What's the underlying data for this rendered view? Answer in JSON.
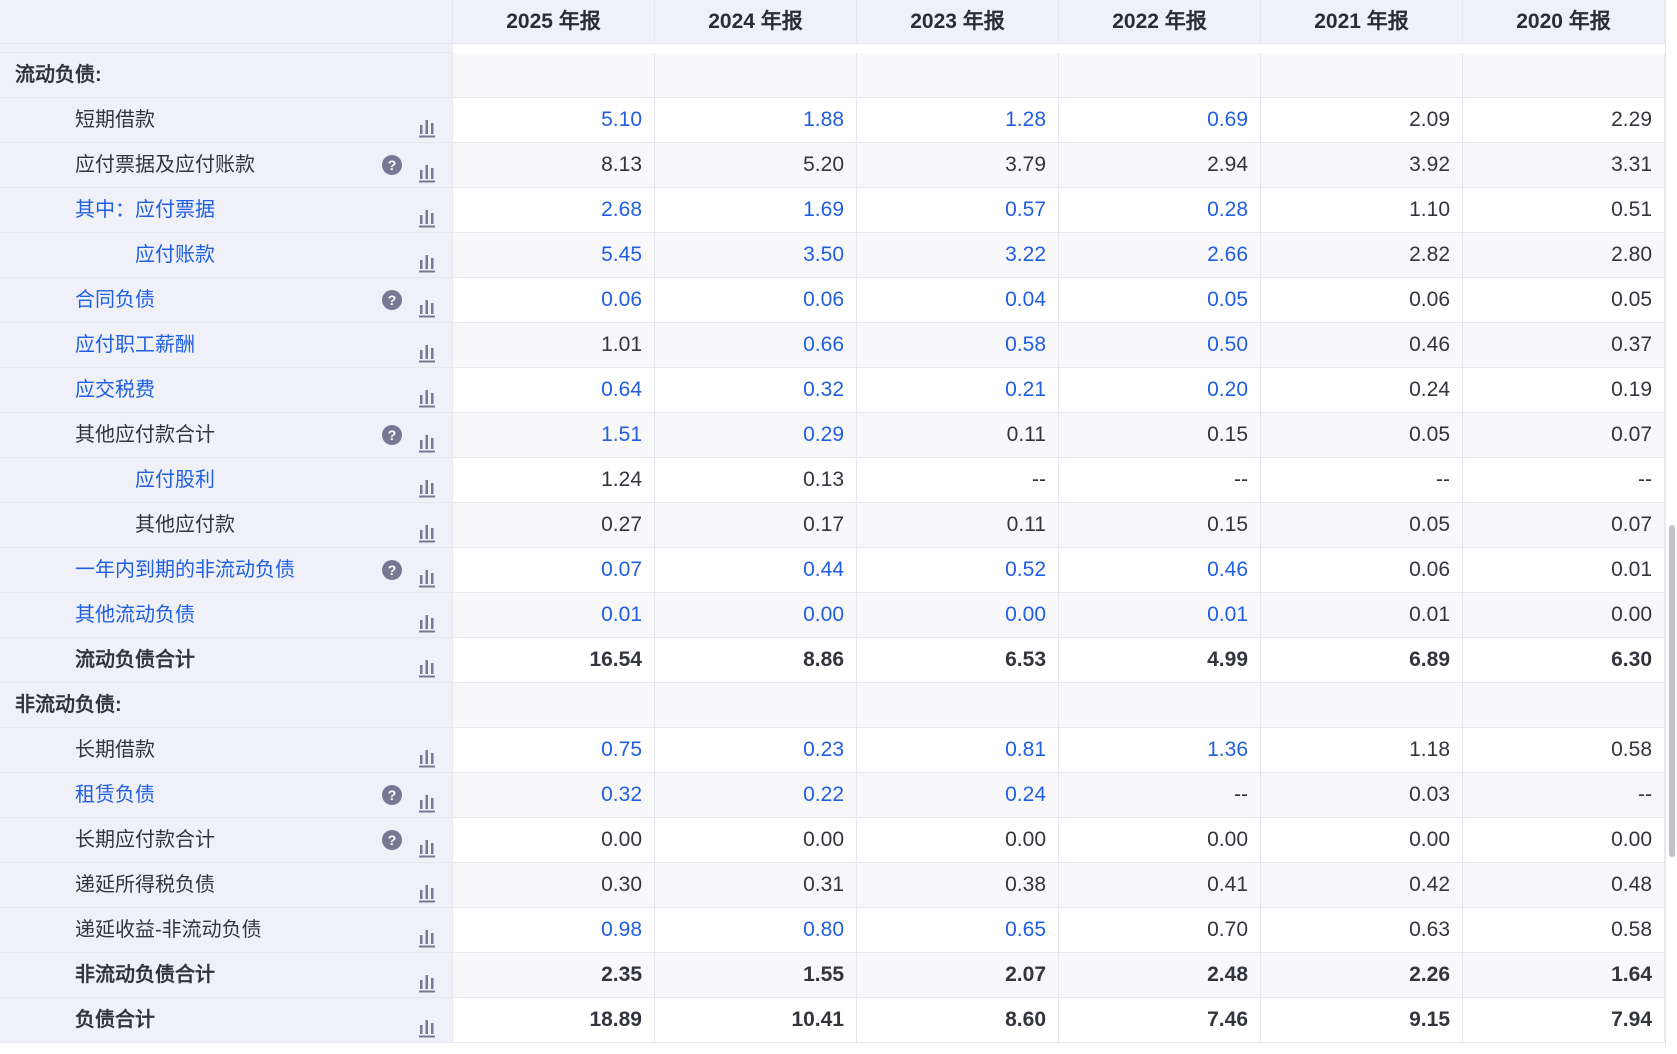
{
  "header": {
    "years": [
      "2025 年报",
      "2024 年报",
      "2023 年报",
      "2022 年报",
      "2021 年报",
      "2020 年报"
    ]
  },
  "colors": {
    "link_blue": "#1f5fe0",
    "text": "#33353d",
    "label_bg": "#f0f1f8"
  },
  "help_glyph": "?",
  "rows": [
    {
      "type": "section",
      "label": "流动负债:"
    },
    {
      "label": "短期借款",
      "level": 1,
      "values": [
        "5.10",
        "1.88",
        "1.28",
        "0.69",
        "2.09",
        "2.29"
      ],
      "blue": [
        1,
        1,
        1,
        1,
        0,
        0
      ]
    },
    {
      "label": "应付票据及应付账款",
      "level": 1,
      "help": true,
      "values": [
        "8.13",
        "5.20",
        "3.79",
        "2.94",
        "3.92",
        "3.31"
      ],
      "blue": [
        0,
        0,
        0,
        0,
        0,
        0
      ]
    },
    {
      "label": "其中：应付票据",
      "level": 1,
      "label_blue": true,
      "values": [
        "2.68",
        "1.69",
        "0.57",
        "0.28",
        "1.10",
        "0.51"
      ],
      "blue": [
        1,
        1,
        1,
        1,
        0,
        0
      ]
    },
    {
      "label": "应付账款",
      "level": 2,
      "label_blue": true,
      "values": [
        "5.45",
        "3.50",
        "3.22",
        "2.66",
        "2.82",
        "2.80"
      ],
      "blue": [
        1,
        1,
        1,
        1,
        0,
        0
      ]
    },
    {
      "label": "合同负债",
      "level": 1,
      "label_blue": true,
      "help": true,
      "values": [
        "0.06",
        "0.06",
        "0.04",
        "0.05",
        "0.06",
        "0.05"
      ],
      "blue": [
        1,
        1,
        1,
        1,
        0,
        0
      ]
    },
    {
      "label": "应付职工薪酬",
      "level": 1,
      "label_blue": true,
      "values": [
        "1.01",
        "0.66",
        "0.58",
        "0.50",
        "0.46",
        "0.37"
      ],
      "blue": [
        0,
        1,
        1,
        1,
        0,
        0
      ]
    },
    {
      "label": "应交税费",
      "level": 1,
      "label_blue": true,
      "values": [
        "0.64",
        "0.32",
        "0.21",
        "0.20",
        "0.24",
        "0.19"
      ],
      "blue": [
        1,
        1,
        1,
        1,
        0,
        0
      ]
    },
    {
      "label": "其他应付款合计",
      "level": 1,
      "help": true,
      "values": [
        "1.51",
        "0.29",
        "0.11",
        "0.15",
        "0.05",
        "0.07"
      ],
      "blue": [
        1,
        1,
        0,
        0,
        0,
        0
      ]
    },
    {
      "label": "应付股利",
      "level": 2,
      "label_blue": true,
      "values": [
        "1.24",
        "0.13",
        "--",
        "--",
        "--",
        "--"
      ],
      "blue": [
        0,
        0,
        0,
        0,
        0,
        0
      ]
    },
    {
      "label": "其他应付款",
      "level": 2,
      "values": [
        "0.27",
        "0.17",
        "0.11",
        "0.15",
        "0.05",
        "0.07"
      ],
      "blue": [
        0,
        0,
        0,
        0,
        0,
        0
      ]
    },
    {
      "label": "一年内到期的非流动负债",
      "level": 1,
      "label_blue": true,
      "help": true,
      "values": [
        "0.07",
        "0.44",
        "0.52",
        "0.46",
        "0.06",
        "0.01"
      ],
      "blue": [
        1,
        1,
        1,
        1,
        0,
        0
      ]
    },
    {
      "label": "其他流动负债",
      "level": 1,
      "label_blue": true,
      "values": [
        "0.01",
        "0.00",
        "0.00",
        "0.01",
        "0.01",
        "0.00"
      ],
      "blue": [
        1,
        1,
        1,
        1,
        0,
        0
      ]
    },
    {
      "label": "流动负债合计",
      "level": 1,
      "bold": true,
      "values": [
        "16.54",
        "8.86",
        "6.53",
        "4.99",
        "6.89",
        "6.30"
      ],
      "blue": [
        0,
        0,
        0,
        0,
        0,
        0
      ]
    },
    {
      "type": "section",
      "label": "非流动负债:"
    },
    {
      "label": "长期借款",
      "level": 1,
      "values": [
        "0.75",
        "0.23",
        "0.81",
        "1.36",
        "1.18",
        "0.58"
      ],
      "blue": [
        1,
        1,
        1,
        1,
        0,
        0
      ]
    },
    {
      "label": "租赁负债",
      "level": 1,
      "label_blue": true,
      "help": true,
      "values": [
        "0.32",
        "0.22",
        "0.24",
        "--",
        "0.03",
        "--"
      ],
      "blue": [
        1,
        1,
        1,
        0,
        0,
        0
      ]
    },
    {
      "label": "长期应付款合计",
      "level": 1,
      "help": true,
      "values": [
        "0.00",
        "0.00",
        "0.00",
        "0.00",
        "0.00",
        "0.00"
      ],
      "blue": [
        0,
        0,
        0,
        0,
        0,
        0
      ]
    },
    {
      "label": "递延所得税负债",
      "level": 1,
      "values": [
        "0.30",
        "0.31",
        "0.38",
        "0.41",
        "0.42",
        "0.48"
      ],
      "blue": [
        0,
        0,
        0,
        0,
        0,
        0
      ]
    },
    {
      "label": "递延收益-非流动负债",
      "level": 1,
      "values": [
        "0.98",
        "0.80",
        "0.65",
        "0.70",
        "0.63",
        "0.58"
      ],
      "blue": [
        1,
        1,
        1,
        0,
        0,
        0
      ]
    },
    {
      "label": "非流动负债合计",
      "level": 1,
      "bold": true,
      "values": [
        "2.35",
        "1.55",
        "2.07",
        "2.48",
        "2.26",
        "1.64"
      ],
      "blue": [
        0,
        0,
        0,
        0,
        0,
        0
      ]
    },
    {
      "label": "负债合计",
      "level": 1,
      "bold": true,
      "values": [
        "18.89",
        "10.41",
        "8.60",
        "7.46",
        "9.15",
        "7.94"
      ],
      "blue": [
        0,
        0,
        0,
        0,
        0,
        0
      ]
    }
  ]
}
